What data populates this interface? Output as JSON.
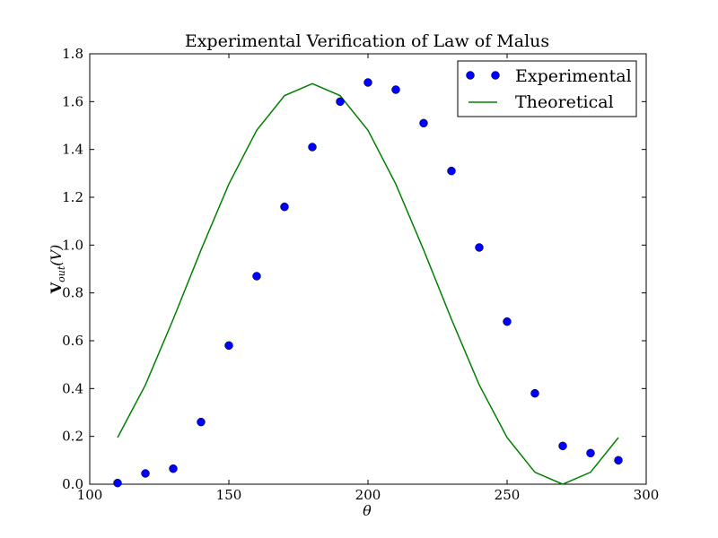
{
  "chart_data": {
    "type": "line",
    "title": "Experimental Verification of Law of Malus",
    "xlabel": "θ",
    "ylabel_main": "V",
    "ylabel_sub": "out",
    "ylabel_tail": "(V)",
    "xlim": [
      100,
      300
    ],
    "ylim": [
      0.0,
      1.8
    ],
    "xticks": [
      "100",
      "150",
      "200",
      "250",
      "300"
    ],
    "yticks": [
      "0.0",
      "0.2",
      "0.4",
      "0.6",
      "0.8",
      "1.0",
      "1.2",
      "1.4",
      "1.6",
      "1.8"
    ],
    "grid": false,
    "legend_position": "top-right",
    "series": [
      {
        "name": "Experimental",
        "style": "markers",
        "color": "#0000ff",
        "x": [
          110,
          120,
          130,
          140,
          150,
          160,
          170,
          180,
          190,
          200,
          210,
          220,
          230,
          240,
          250,
          260,
          270,
          280,
          290
        ],
        "y": [
          0.005,
          0.045,
          0.065,
          0.26,
          0.58,
          0.87,
          1.16,
          1.41,
          1.6,
          1.68,
          1.65,
          1.51,
          1.31,
          0.99,
          0.68,
          0.38,
          0.16,
          0.13,
          0.1
        ]
      },
      {
        "name": "Theoretical",
        "style": "line",
        "color": "#008000",
        "x": [
          110,
          120,
          130,
          140,
          150,
          160,
          170,
          180,
          190,
          200,
          210,
          220,
          230,
          240,
          250,
          260,
          270,
          280,
          290
        ],
        "y": [
          0.195,
          0.415,
          0.69,
          0.98,
          1.255,
          1.48,
          1.625,
          1.675,
          1.625,
          1.48,
          1.255,
          0.98,
          0.69,
          0.415,
          0.195,
          0.05,
          0.0,
          0.05,
          0.195
        ]
      }
    ]
  }
}
